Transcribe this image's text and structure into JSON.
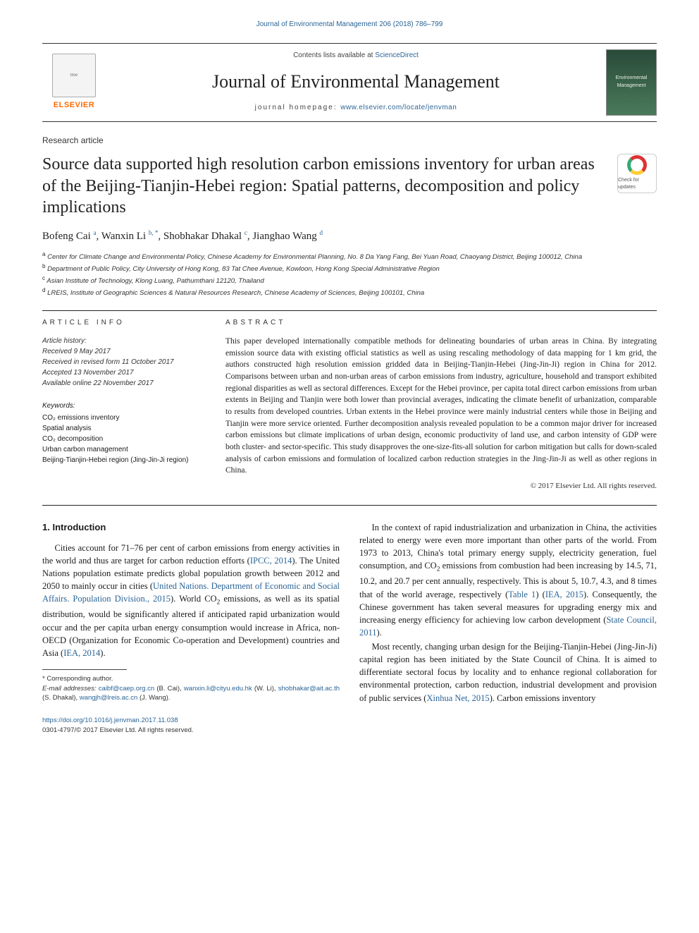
{
  "runningHead": "Journal of Environmental Management 206 (2018) 786–799",
  "masthead": {
    "elsevier": "ELSEVIER",
    "contentsPrefix": "Contents lists available at ",
    "contentsLink": "ScienceDirect",
    "journal": "Journal of Environmental Management",
    "homepagePrefix": "journal homepage: ",
    "homepageLink": "www.elsevier.com/locate/jenvman",
    "coverText": "Environmental Management"
  },
  "articleType": "Research article",
  "title": "Source data supported high resolution carbon emissions inventory for urban areas of the Beijing-Tianjin-Hebei region: Spatial patterns, decomposition and policy implications",
  "crossmarkText": "Check for updates",
  "authors": [
    {
      "name": "Bofeng Cai",
      "sup": "a"
    },
    {
      "name": "Wanxin Li",
      "sup": "b, *"
    },
    {
      "name": "Shobhakar Dhakal",
      "sup": "c"
    },
    {
      "name": "Jianghao Wang",
      "sup": "d"
    }
  ],
  "affiliations": [
    {
      "sup": "a",
      "text": "Center for Climate Change and Environmental Policy, Chinese Academy for Environmental Planning, No. 8 Da Yang Fang, Bei Yuan Road, Chaoyang District, Beijing 100012, China"
    },
    {
      "sup": "b",
      "text": "Department of Public Policy, City University of Hong Kong, 83 Tat Chee Avenue, Kowloon, Hong Kong Special Administrative Region"
    },
    {
      "sup": "c",
      "text": "Asian Institute of Technology, Klong Luang, Pathumthani 12120, Thailand"
    },
    {
      "sup": "d",
      "text": "LREIS, Institute of Geographic Sciences & Natural Resources Research, Chinese Academy of Sciences, Beijing 100101, China"
    }
  ],
  "infoHead": "ARTICLE INFO",
  "abstractHead": "ABSTRACT",
  "history": {
    "label": "Article history:",
    "received": "Received 9 May 2017",
    "revised": "Received in revised form 11 October 2017",
    "accepted": "Accepted 13 November 2017",
    "online": "Available online 22 November 2017"
  },
  "keywords": {
    "label": "Keywords:",
    "items": [
      "CO₂ emissions inventory",
      "Spatial analysis",
      "CO₂ decomposition",
      "Urban carbon management",
      "Beijing-Tianjin-Hebei region (Jing-Jin-Ji region)"
    ]
  },
  "abstract": "This paper developed internationally compatible methods for delineating boundaries of urban areas in China. By integrating emission source data with existing official statistics as well as using rescaling methodology of data mapping for 1 km grid, the authors constructed high resolution emission gridded data in Beijing-Tianjin-Hebei (Jing-Jin-Ji) region in China for 2012. Comparisons between urban and non-urban areas of carbon emissions from industry, agriculture, household and transport exhibited regional disparities as well as sectoral differences. Except for the Hebei province, per capita total direct carbon emissions from urban extents in Beijing and Tianjin were both lower than provincial averages, indicating the climate benefit of urbanization, comparable to results from developed countries. Urban extents in the Hebei province were mainly industrial centers while those in Beijing and Tianjin were more service oriented. Further decomposition analysis revealed population to be a common major driver for increased carbon emissions but climate implications of urban design, economic productivity of land use, and carbon intensity of GDP were both cluster- and sector-specific. This study disapproves the one-size-fits-all solution for carbon mitigation but calls for down-scaled analysis of carbon emissions and formulation of localized carbon reduction strategies in the Jing-Jin-Ji as well as other regions in China.",
  "copyright": "© 2017 Elsevier Ltd. All rights reserved.",
  "sectionHead": "1. Introduction",
  "para1a": "Cities account for 71–76 per cent of carbon emissions from energy activities in the world and thus are target for carbon reduction efforts (",
  "para1b": "). The United Nations population estimate predicts global population growth between 2012 and 2050 to mainly occur in cities (",
  "para1c": "). World CO",
  "para1d": " emissions, as well as its spatial distribution, would be significantly altered if anticipated rapid urbanization would occur and the per capita urban energy consumption would increase in Africa, non-OECD (Organization for Economic Co-operation and Development) countries and Asia (",
  "para1e": ").",
  "cite1": "IPCC, 2014",
  "cite2": "United Nations. Department of Economic and Social Affairs. Population Division., 2015",
  "cite3": "IEA, 2014",
  "para2a": "In the context of rapid industrialization and urbanization in China, the activities related to energy were even more important than other parts of the world. From 1973 to 2013, China's total primary energy supply, electricity generation, fuel consumption, and CO",
  "para2b": " emissions from combustion had been increasing by 14.5, 71, 10.2, and 20.7 per cent annually, respectively. This is about 5, 10.7, 4.3, and 8 times that of the world average, respectively (",
  "para2c": ") (",
  "para2d": "). Consequently, the Chinese government has taken several measures for upgrading energy mix and increasing energy efficiency for achieving low carbon development (",
  "para2e": ").",
  "cite4": "Table 1",
  "cite5": "IEA, 2015",
  "cite6": "State Council, 2011",
  "para3a": "Most recently, changing urban design for the Beijing-Tianjin-Hebei (Jing-Jin-Ji) capital region has been initiated by the State Council of China. It is aimed to differentiate sectoral focus by locality and to enhance regional collaboration for environmental protection, carbon reduction, industrial development and provision of public services (",
  "para3b": "). Carbon emissions inventory",
  "cite7": "Xinhua Net, 2015",
  "corresponding": "* Corresponding author.",
  "emailsLabel": "E-mail addresses: ",
  "emails": [
    {
      "addr": "caibf@caep.org.cn",
      "who": " (B. Cai), "
    },
    {
      "addr": "wanxin.li@cityu.edu.hk",
      "who": " (W. Li), "
    },
    {
      "addr": "shobhakar@ait.ac.th",
      "who": " (S. Dhakal), "
    },
    {
      "addr": "wangjh@lreis.ac.cn",
      "who": " (J. Wang)."
    }
  ],
  "doi": "https://doi.org/10.1016/j.jenvman.2017.11.038",
  "issn": "0301-4797/© 2017 Elsevier Ltd. All rights reserved.",
  "colors": {
    "link": "#2a6496",
    "elsevierOrange": "#ff6a00",
    "text": "#1a1a1a",
    "rule": "#222222"
  },
  "typography": {
    "titleFontSize": 24,
    "journalFontSize": 26,
    "bodyFontSize": 12.5,
    "abstractFontSize": 11.5,
    "smallFontSize": 10
  }
}
